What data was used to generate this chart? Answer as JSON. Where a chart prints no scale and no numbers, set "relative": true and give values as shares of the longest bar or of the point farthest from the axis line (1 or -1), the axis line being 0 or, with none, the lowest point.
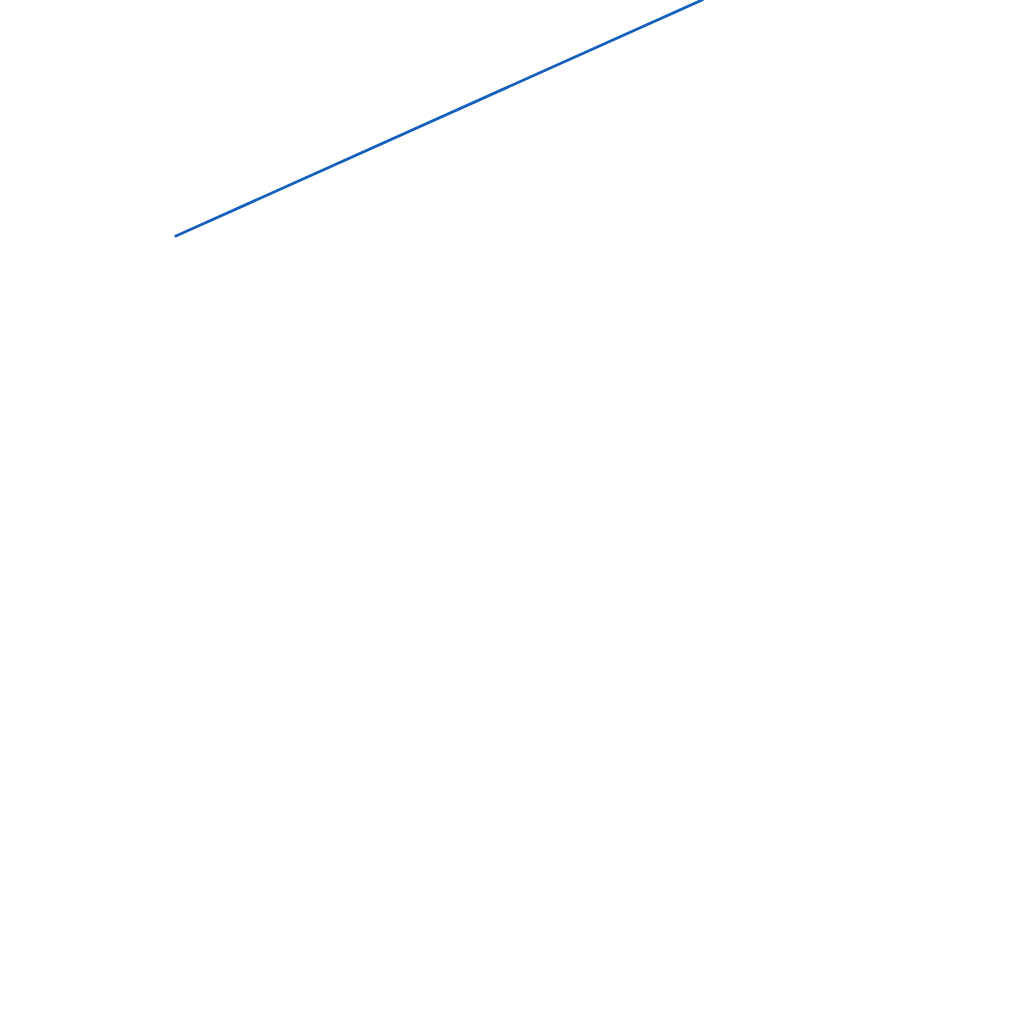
{
  "chart_data": {
    "type": "line",
    "relative": true,
    "categories": [
      null,
      null
    ],
    "series": [
      {
        "color": "#1560bd",
        "values": [
          0,
          1
        ]
      }
    ]
  }
}
